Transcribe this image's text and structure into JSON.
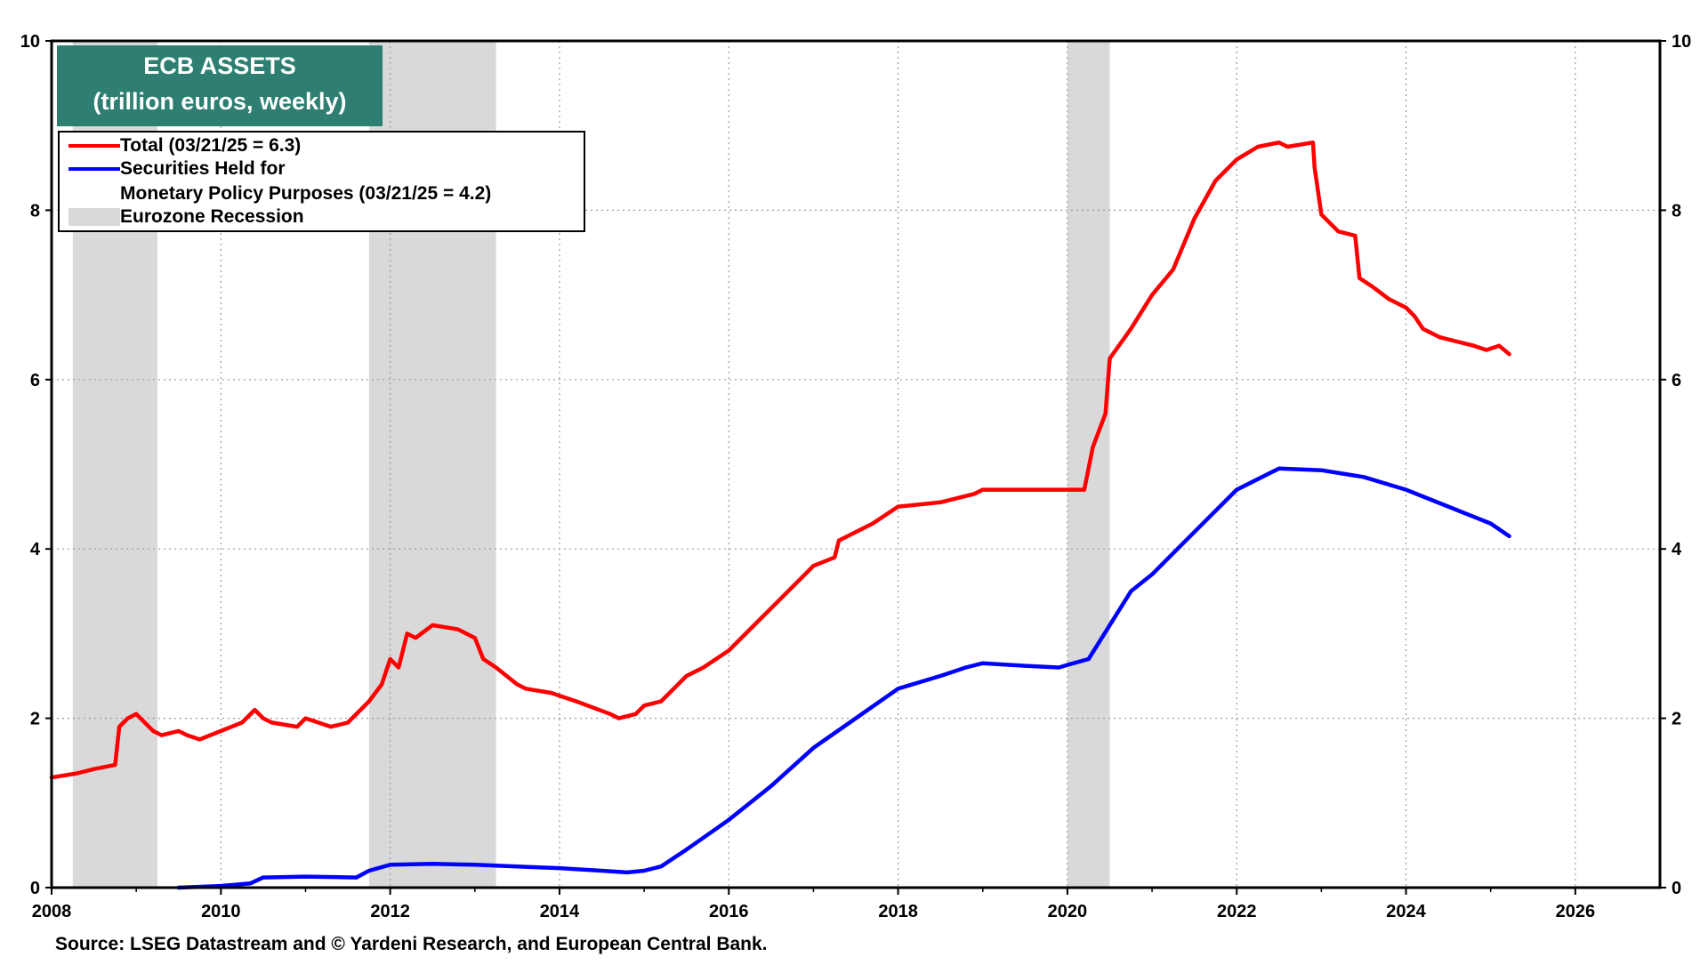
{
  "title": {
    "line1": "ECB ASSETS",
    "line2": "(trillion euros, weekly)"
  },
  "legend": {
    "total": "Total (03/21/25 = 6.3)",
    "securities_line1": "Securities Held for",
    "securities_line2": "Monetary Policy Purposes (03/21/25 = 4.2)",
    "recession": "Eurozone Recession"
  },
  "source": "Source: LSEG Datastream and © Yardeni Research, and European Central Bank.",
  "colors": {
    "total": "#ff0000",
    "securities": "#0000ff",
    "recession": "#d9d9d9",
    "title_bg": "#2e7f71"
  },
  "chart_data": {
    "type": "line",
    "title": "ECB ASSETS",
    "subtitle": "(trillion euros, weekly)",
    "xlim": [
      2008,
      2027
    ],
    "ylim": [
      0,
      10
    ],
    "x_ticks": [
      2008,
      2010,
      2012,
      2014,
      2016,
      2018,
      2020,
      2022,
      2024,
      2026
    ],
    "y_ticks": [
      0,
      2,
      4,
      6,
      8,
      10
    ],
    "y_axis_right": true,
    "grid": true,
    "legend_position": "top-left",
    "recessions": [
      {
        "start": 2008.25,
        "end": 2009.25
      },
      {
        "start": 2011.75,
        "end": 2013.25
      },
      {
        "start": 2020.0,
        "end": 2020.5
      }
    ],
    "series": [
      {
        "name": "Total (03/21/25 = 6.3)",
        "x": [
          2008.0,
          2008.3,
          2008.5,
          2008.75,
          2008.8,
          2008.9,
          2009.0,
          2009.2,
          2009.3,
          2009.5,
          2009.6,
          2009.75,
          2010.0,
          2010.25,
          2010.4,
          2010.5,
          2010.6,
          2010.9,
          2011.0,
          2011.3,
          2011.5,
          2011.75,
          2011.9,
          2012.0,
          2012.1,
          2012.2,
          2012.3,
          2012.5,
          2012.8,
          2013.0,
          2013.1,
          2013.25,
          2013.5,
          2013.6,
          2013.9,
          2014.2,
          2014.6,
          2014.7,
          2014.9,
          2015.0,
          2015.2,
          2015.5,
          2015.7,
          2016.0,
          2016.3,
          2016.6,
          2016.9,
          2017.0,
          2017.25,
          2017.3,
          2017.7,
          2018.0,
          2018.5,
          2018.9,
          2019.0,
          2019.5,
          2019.9,
          2020.0,
          2020.2,
          2020.3,
          2020.45,
          2020.5,
          2020.75,
          2021.0,
          2021.25,
          2021.5,
          2021.75,
          2022.0,
          2022.25,
          2022.5,
          2022.6,
          2022.9,
          2022.92,
          2023.0,
          2023.2,
          2023.4,
          2023.45,
          2023.6,
          2023.8,
          2024.0,
          2024.1,
          2024.2,
          2024.4,
          2024.6,
          2024.8,
          2024.95,
          2025.1,
          2025.22
        ],
        "values": [
          1.3,
          1.35,
          1.4,
          1.45,
          1.9,
          2.0,
          2.05,
          1.85,
          1.8,
          1.85,
          1.8,
          1.75,
          1.85,
          1.95,
          2.1,
          2.0,
          1.95,
          1.9,
          2.0,
          1.9,
          1.95,
          2.2,
          2.4,
          2.7,
          2.6,
          3.0,
          2.95,
          3.1,
          3.05,
          2.95,
          2.7,
          2.6,
          2.4,
          2.35,
          2.3,
          2.2,
          2.05,
          2.0,
          2.05,
          2.15,
          2.2,
          2.5,
          2.6,
          2.8,
          3.1,
          3.4,
          3.7,
          3.8,
          3.9,
          4.1,
          4.3,
          4.5,
          4.55,
          4.65,
          4.7,
          4.7,
          4.7,
          4.7,
          4.7,
          5.2,
          5.6,
          6.25,
          6.6,
          7.0,
          7.3,
          7.9,
          8.35,
          8.6,
          8.75,
          8.8,
          8.75,
          8.8,
          8.5,
          7.95,
          7.75,
          7.7,
          7.2,
          7.1,
          6.95,
          6.85,
          6.75,
          6.6,
          6.5,
          6.45,
          6.4,
          6.35,
          6.4,
          6.3
        ]
      },
      {
        "name": "Securities Held for Monetary Policy Purposes (03/21/25 = 4.2)",
        "x": [
          2009.5,
          2010.0,
          2010.35,
          2010.5,
          2011.0,
          2011.6,
          2011.75,
          2012.0,
          2012.5,
          2013.0,
          2013.5,
          2014.0,
          2014.5,
          2014.8,
          2015.0,
          2015.2,
          2015.5,
          2016.0,
          2016.5,
          2017.0,
          2017.5,
          2018.0,
          2018.5,
          2018.8,
          2019.0,
          2019.5,
          2019.9,
          2020.0,
          2020.25,
          2020.5,
          2020.75,
          2021.0,
          2021.5,
          2022.0,
          2022.4,
          2022.5,
          2023.0,
          2023.5,
          2024.0,
          2024.5,
          2025.0,
          2025.22
        ],
        "values": [
          0.0,
          0.02,
          0.05,
          0.12,
          0.13,
          0.12,
          0.2,
          0.27,
          0.28,
          0.27,
          0.25,
          0.23,
          0.2,
          0.18,
          0.2,
          0.25,
          0.45,
          0.8,
          1.2,
          1.65,
          2.0,
          2.35,
          2.5,
          2.6,
          2.65,
          2.62,
          2.6,
          2.63,
          2.7,
          3.1,
          3.5,
          3.7,
          4.2,
          4.7,
          4.9,
          4.95,
          4.93,
          4.85,
          4.7,
          4.5,
          4.3,
          4.15
        ]
      }
    ]
  }
}
